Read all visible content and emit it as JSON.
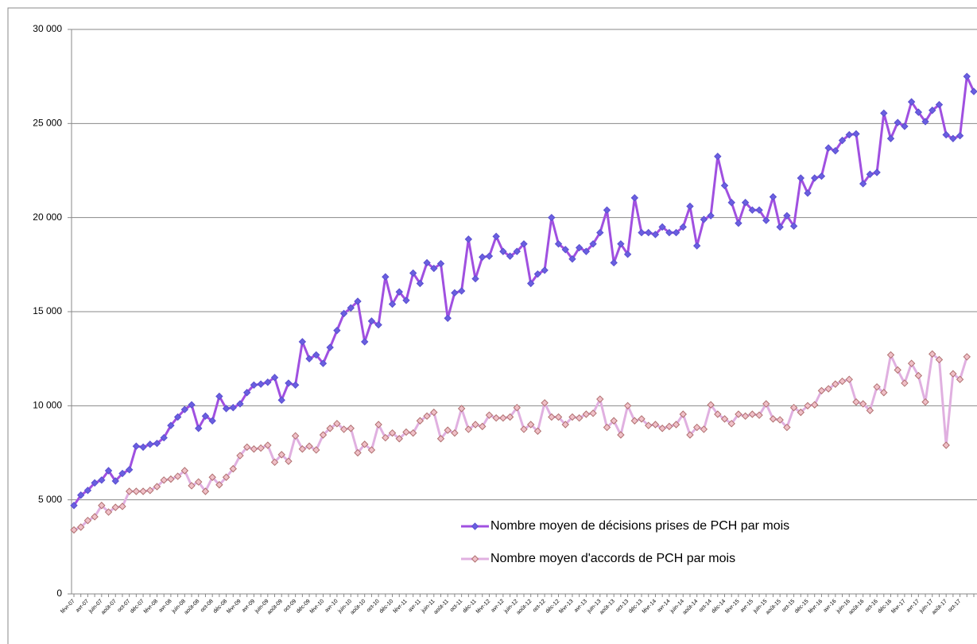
{
  "chart_data": {
    "type": "line",
    "categories": [
      "févr-07",
      null,
      "avr-07",
      null,
      "juin-07",
      null,
      "août-07",
      null,
      "oct-07",
      null,
      "déc-07",
      null,
      "févr-08",
      null,
      "avr-08",
      null,
      "juin-08",
      null,
      "août-08",
      null,
      "oct-08",
      null,
      "déc-08",
      null,
      "févr-09",
      null,
      "avr-09",
      null,
      "juin-09",
      null,
      "août-09",
      null,
      "oct-09",
      null,
      "déc-09",
      null,
      "févr-10",
      null,
      "avr-10",
      null,
      "juin-10",
      null,
      "août-10",
      null,
      "oct-10",
      null,
      "déc-10",
      null,
      "févr-11",
      null,
      "avr-11",
      null,
      "juin-11",
      null,
      "août-11",
      null,
      "oct-11",
      null,
      "déc-11",
      null,
      "févr-12",
      null,
      "avr-12",
      null,
      "juin-12",
      null,
      "août-12",
      null,
      "oct-12",
      null,
      "déc-12",
      null,
      "févr-13",
      null,
      "avr-13",
      null,
      "juin-13",
      null,
      "août-13",
      null,
      "oct-13",
      null,
      "déc-13",
      null,
      "févr-14",
      null,
      "avr-14",
      null,
      "juin-14",
      null,
      "août-14",
      null,
      "oct-14",
      null,
      "déc-14",
      null,
      "févr-15",
      null,
      "avr-15",
      null,
      "juin-15",
      null,
      "août-15",
      null,
      "oct-15",
      null,
      "déc-15",
      null,
      "févr-16",
      null,
      "avr-16",
      null,
      "juin-16",
      null,
      "août-16",
      null,
      "oct-16",
      null,
      "déc-16",
      null,
      "févr-17",
      null,
      "avr-17",
      null,
      "juin-17",
      null,
      "août-17",
      null,
      "oct-17",
      null,
      null
    ],
    "series": [
      {
        "name": "Nombre moyen de décisions prises de PCH par mois",
        "color": "#a050e0",
        "marker_color": "#6a5fe0",
        "values": [
          4700,
          5250,
          5500,
          5900,
          6050,
          6550,
          6000,
          6400,
          6600,
          7850,
          7800,
          7950,
          8000,
          8300,
          8950,
          9400,
          9800,
          10050,
          8800,
          9450,
          9200,
          10500,
          9850,
          9900,
          10100,
          10700,
          11100,
          11150,
          11250,
          11500,
          10300,
          11200,
          11100,
          13400,
          12500,
          12700,
          12250,
          13100,
          14000,
          14900,
          15200,
          15550,
          13400,
          14500,
          14300,
          16850,
          15400,
          16050,
          15600,
          17050,
          16500,
          17600,
          17300,
          17550,
          14650,
          16000,
          16100,
          18850,
          16750,
          17900,
          17950,
          19000,
          18200,
          17950,
          18200,
          18600,
          16500,
          17000,
          17200,
          20000,
          18600,
          18300,
          17800,
          18400,
          18200,
          18600,
          19200,
          20400,
          17600,
          18600,
          18050,
          21050,
          19200,
          19200,
          19100,
          19500,
          19200,
          19200,
          19500,
          20600,
          18500,
          19900,
          20100,
          23250,
          21700,
          20800,
          19700,
          20800,
          20400,
          20400,
          19850,
          21100,
          19500,
          20100,
          19550,
          22100,
          21300,
          22100,
          22200,
          23700,
          23550,
          24100,
          24400,
          24450,
          21800,
          22300,
          22400,
          25550,
          24200,
          25050,
          24850,
          26150,
          25600,
          25100,
          25700,
          26000,
          24400,
          24200,
          24350,
          27500,
          26700
        ]
      },
      {
        "name": "Nombre moyen d'accords de PCH par mois",
        "color": "#e0b0e0",
        "marker_color": "#f0c0c8",
        "values": [
          3400,
          3550,
          3900,
          4100,
          4700,
          4350,
          4600,
          4650,
          5450,
          5450,
          5450,
          5500,
          5700,
          6050,
          6100,
          6250,
          6550,
          5750,
          5950,
          5450,
          6200,
          5800,
          6200,
          6650,
          7350,
          7800,
          7700,
          7750,
          7900,
          7000,
          7400,
          7050,
          8400,
          7700,
          7850,
          7650,
          8450,
          8800,
          9050,
          8750,
          8800,
          7500,
          7950,
          7650,
          9000,
          8300,
          8550,
          8250,
          8600,
          8550,
          9200,
          9450,
          9650,
          8250,
          8700,
          8550,
          9850,
          8750,
          9000,
          8900,
          9500,
          9350,
          9350,
          9400,
          9900,
          8750,
          9000,
          8650,
          10150,
          9400,
          9400,
          9000,
          9400,
          9350,
          9550,
          9600,
          10350,
          8850,
          9200,
          8450,
          10000,
          9200,
          9300,
          8950,
          9000,
          8800,
          8900,
          9000,
          9550,
          8450,
          8850,
          8750,
          10050,
          9550,
          9300,
          9050,
          9550,
          9450,
          9550,
          9500,
          10100,
          9300,
          9250,
          8850,
          9900,
          9650,
          10000,
          10050,
          10800,
          10900,
          11150,
          11300,
          11400,
          10200,
          10100,
          9750,
          11000,
          10700,
          12700,
          11900,
          11200,
          12250,
          11600,
          10200,
          12750,
          12450,
          7900,
          11700,
          11400,
          12600,
          null
        ]
      }
    ],
    "ylim": [
      0,
      30000
    ],
    "yticks": [
      0,
      {
        "value": 5000,
        "label": "5 000"
      },
      {
        "value": 10000,
        "label": "10 000"
      },
      {
        "value": 15000,
        "label": "15 000"
      },
      {
        "value": 20000,
        "label": "20 000"
      },
      {
        "value": 25000,
        "label": "25 000"
      },
      {
        "value": 30000,
        "label": "30 000"
      }
    ],
    "grid": true
  }
}
